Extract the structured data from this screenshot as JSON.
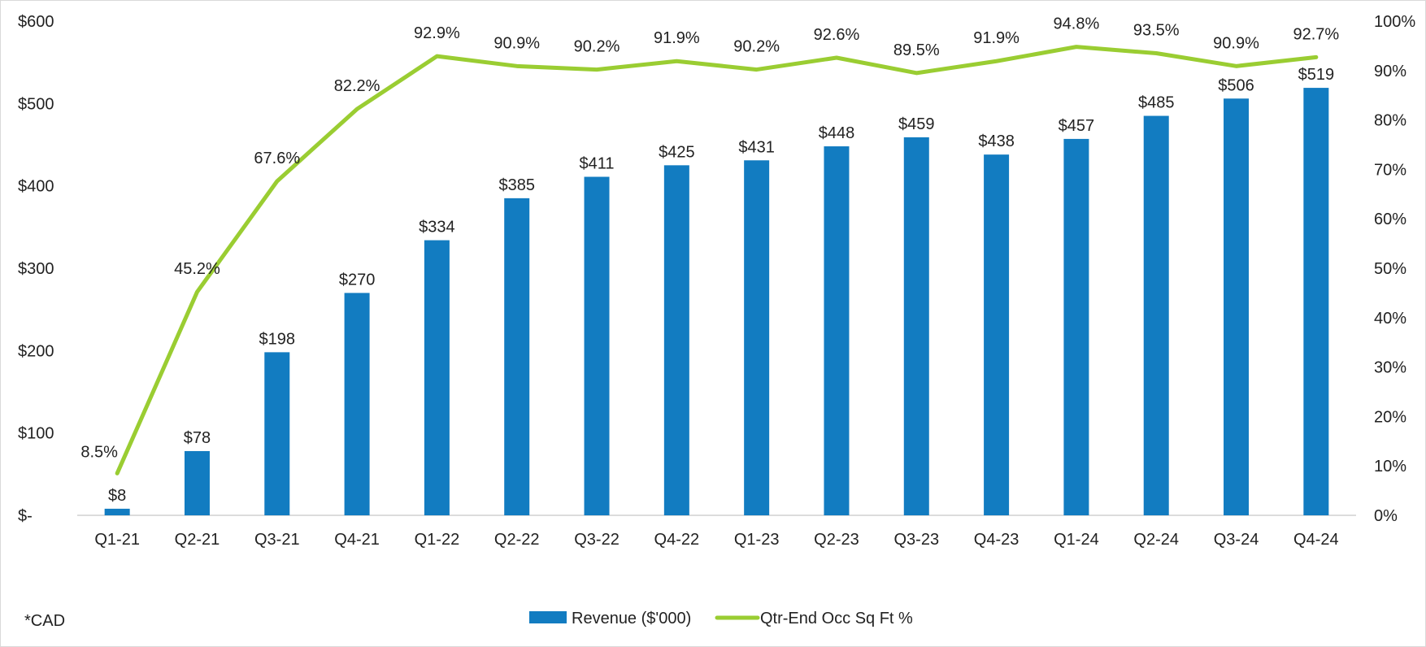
{
  "chart_data": {
    "type": "bar+line",
    "categories": [
      "Q1-21",
      "Q2-21",
      "Q3-21",
      "Q4-21",
      "Q1-22",
      "Q2-22",
      "Q3-22",
      "Q4-22",
      "Q1-23",
      "Q2-23",
      "Q3-23",
      "Q4-23",
      "Q1-24",
      "Q2-24",
      "Q3-24",
      "Q4-24"
    ],
    "series": [
      {
        "name": "Revenue ($'000)",
        "type": "bar",
        "axis": "left",
        "color": "#127cc1",
        "values": [
          8,
          78,
          198,
          270,
          334,
          385,
          411,
          425,
          431,
          448,
          459,
          438,
          457,
          485,
          506,
          519
        ],
        "labels": [
          "$8",
          "$78",
          "$198",
          "$270",
          "$334",
          "$385",
          "$411",
          "$425",
          "$431",
          "$448",
          "$459",
          "$438",
          "$457",
          "$485",
          "$506",
          "$519"
        ]
      },
      {
        "name": "Qtr-End Occ Sq Ft %",
        "type": "line",
        "axis": "right",
        "color": "#9acd32",
        "values": [
          8.5,
          45.2,
          67.6,
          82.2,
          92.9,
          90.9,
          90.2,
          91.9,
          90.2,
          92.6,
          89.5,
          91.9,
          94.8,
          93.5,
          90.9,
          92.7
        ],
        "labels": [
          "8.5%",
          "45.2%",
          "67.6%",
          "82.2%",
          "92.9%",
          "90.9%",
          "90.2%",
          "91.9%",
          "90.2%",
          "92.6%",
          "89.5%",
          "91.9%",
          "94.8%",
          "93.5%",
          "90.9%",
          "92.7%"
        ]
      }
    ],
    "y_left": {
      "ylim": [
        0,
        600
      ],
      "ticks": [
        0,
        100,
        200,
        300,
        400,
        500,
        600
      ],
      "tick_labels": [
        "$-",
        "$100",
        "$200",
        "$300",
        "$400",
        "$500",
        "$600"
      ]
    },
    "y_right": {
      "ylim": [
        0,
        100
      ],
      "ticks": [
        0,
        10,
        20,
        30,
        40,
        50,
        60,
        70,
        80,
        90,
        100
      ],
      "tick_labels": [
        "0%",
        "10%",
        "20%",
        "30%",
        "40%",
        "50%",
        "60%",
        "70%",
        "80%",
        "90%",
        "100%"
      ]
    },
    "legend": {
      "position": "bottom-center",
      "entries": [
        "Revenue ($'000)",
        "Qtr-End Occ Sq Ft %"
      ]
    },
    "footnote": "*CAD",
    "grid": false
  }
}
